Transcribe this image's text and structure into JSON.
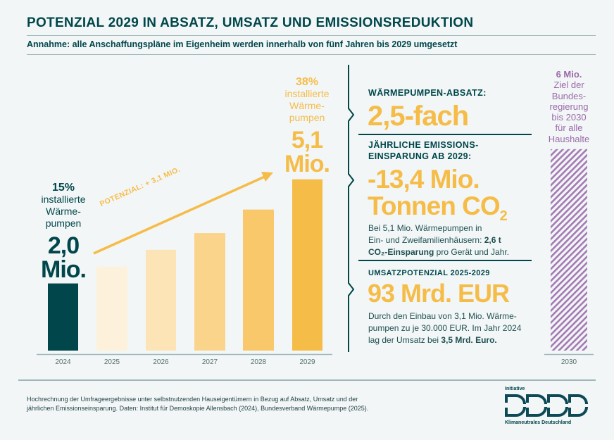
{
  "header": {
    "title": "POTENZIAL 2029 IN ABSATZ, UMSATZ UND EMISSIONSREDUKTION",
    "subtitle": "Annahme: alle Anschaffungspläne im Eigenheim werden innerhalb von fünf Jahren bis 2029 umgesetzt"
  },
  "colors": {
    "dark_teal": "#00464a",
    "yellow": "#f6bc48",
    "purple": "#9a6aa8",
    "background": "#f2f6f7"
  },
  "chart_data": {
    "type": "bar",
    "categories": [
      "2024",
      "2025",
      "2026",
      "2027",
      "2028",
      "2029",
      "2030"
    ],
    "values": [
      2.0,
      2.5,
      3.0,
      3.5,
      4.2,
      5.1,
      6.0
    ],
    "unit": "Mio.",
    "bar_colors": [
      "#00464a",
      "#fdf1dc",
      "#fde4b6",
      "#fbd48c",
      "#f9c86b",
      "#f6bc48",
      "hatched-purple"
    ],
    "ylim": [
      0,
      6.2
    ],
    "grid": false,
    "annotations": {
      "start": {
        "percent": "15%",
        "text": [
          "installierte",
          "Wärme-",
          "pumpen"
        ],
        "value": "2,0",
        "unit": "Mio."
      },
      "end": {
        "percent": "38%",
        "text": [
          "installierte",
          "Wärme-",
          "pumpen"
        ],
        "value": "5,1",
        "unit": "Mio."
      },
      "arrow": "POTENZIAL: + 3,1 MIO.",
      "target": {
        "value": "6 Mio.",
        "text": [
          "Ziel der",
          "Bundes-",
          "regierung",
          "bis 2030",
          "für alle",
          "Haushalte"
        ]
      }
    }
  },
  "panel": {
    "absatz": {
      "heading": "WÄRMEPUMPEN-ABSATZ:",
      "value": "2,5-fach"
    },
    "emission": {
      "heading1": "JÄHRLICHE EMISSIONS-",
      "heading2": "EINSPARUNG AB 2029:",
      "value1": "-13,4 Mio.",
      "value2": "Tonnen CO",
      "sub": "2",
      "body1": "Bei 5,1 Mio. Wärmepumpen in",
      "body2": "Ein- und Zweifamilienhäusern: ",
      "body2_bold": "2,6 t",
      "body3_bold": "CO₂-Einsparung",
      "body3": " pro Gerät und Jahr."
    },
    "umsatz": {
      "heading": "UMSATZPOTENZIAL 2025-2029",
      "value": "93 Mrd. EUR",
      "body1": "Durch den Einbau von 3,1 Mio. Wärme-",
      "body2": "pumpen zu je 30.000 EUR. Im Jahr 2024",
      "body3": "lag der Umsatz bei ",
      "body3_bold": "3,5 Mrd. Euro."
    }
  },
  "footer": {
    "note1": "Hochrechnung der Umfrageergebnisse unter selbstnutzenden Hauseigentümern in Bezug auf Absatz, Umsatz und der",
    "note2": "jährlichen Emissionseinsparung. Daten: Institut für Demoskopie Allensbach (2024), Bundesverband Wärmepumpe (2025).",
    "logo_top": "Initiative",
    "logo_bottom": "Klimaneutrales Deutschland"
  }
}
